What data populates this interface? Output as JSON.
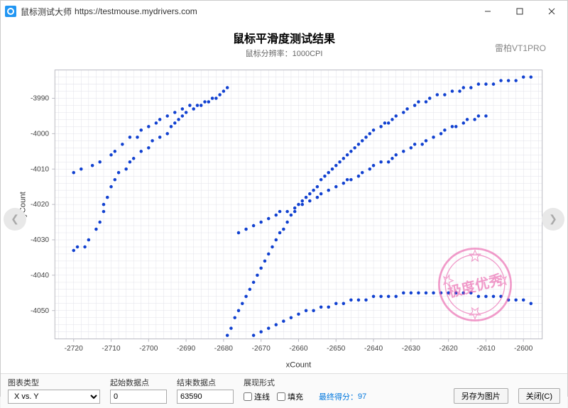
{
  "window": {
    "app_name": "鼠标测试大师",
    "url": "https://testmouse.mydrivers.com"
  },
  "chart": {
    "type": "scatter",
    "title": "鼠标平滑度测试结果",
    "subtitle": "鼠标分辨率：1000CPI",
    "device": "雷柏VT1PRO",
    "xlabel": "xCount",
    "ylabel": "yCount",
    "xlim": [
      -2725,
      -2595
    ],
    "ylim": [
      -4058,
      -3982
    ],
    "xticks": [
      -2720,
      -2710,
      -2700,
      -2690,
      -2680,
      -2670,
      -2660,
      -2650,
      -2640,
      -2630,
      -2620,
      -2610,
      -2600
    ],
    "yticks": [
      -4050,
      -4040,
      -4030,
      -4020,
      -4010,
      -4000,
      -3990
    ],
    "marker_color": "#1040d0",
    "marker_size": 2.2,
    "grid_color": "#e2e2ea",
    "border_color": "#bcbcc4",
    "background_color": "#ffffff",
    "series": [
      {
        "points": [
          [
            -2720,
            -4033
          ],
          [
            -2719,
            -4032
          ],
          [
            -2717,
            -4032
          ],
          [
            -2716,
            -4030
          ],
          [
            -2714,
            -4027
          ],
          [
            -2713,
            -4025
          ],
          [
            -2712,
            -4022
          ],
          [
            -2712,
            -4020
          ],
          [
            -2711,
            -4018
          ],
          [
            -2710,
            -4015
          ],
          [
            -2709,
            -4013
          ],
          [
            -2708,
            -4011
          ],
          [
            -2706,
            -4010
          ],
          [
            -2705,
            -4008
          ],
          [
            -2704,
            -4007
          ],
          [
            -2702,
            -4005
          ],
          [
            -2700,
            -4004
          ],
          [
            -2699,
            -4002
          ],
          [
            -2697,
            -4001
          ],
          [
            -2695,
            -4000
          ],
          [
            -2694,
            -3998
          ],
          [
            -2693,
            -3997
          ],
          [
            -2692,
            -3996
          ],
          [
            -2691,
            -3995
          ],
          [
            -2690,
            -3994
          ],
          [
            -2688,
            -3993
          ],
          [
            -2686,
            -3992
          ],
          [
            -2684,
            -3991
          ],
          [
            -2683,
            -3990
          ],
          [
            -2681,
            -3989
          ],
          [
            -2680,
            -3988
          ],
          [
            -2679,
            -3987
          ]
        ]
      },
      {
        "points": [
          [
            -2720,
            -4011
          ],
          [
            -2718,
            -4010
          ],
          [
            -2715,
            -4009
          ],
          [
            -2713,
            -4008
          ],
          [
            -2710,
            -4006
          ],
          [
            -2709,
            -4005
          ],
          [
            -2707,
            -4003
          ],
          [
            -2705,
            -4001
          ],
          [
            -2703,
            -4001
          ],
          [
            -2702,
            -3999
          ],
          [
            -2700,
            -3998
          ],
          [
            -2698,
            -3997
          ],
          [
            -2697,
            -3996
          ],
          [
            -2695,
            -3995
          ],
          [
            -2693,
            -3994
          ],
          [
            -2691,
            -3993
          ],
          [
            -2689,
            -3992
          ],
          [
            -2687,
            -3992
          ],
          [
            -2685,
            -3991
          ],
          [
            -2682,
            -3990
          ]
        ]
      },
      {
        "points": [
          [
            -2679,
            -4057
          ],
          [
            -2678,
            -4055
          ],
          [
            -2677,
            -4052
          ],
          [
            -2676,
            -4050
          ],
          [
            -2675,
            -4048
          ],
          [
            -2674,
            -4046
          ],
          [
            -2673,
            -4044
          ],
          [
            -2672,
            -4042
          ],
          [
            -2671,
            -4040
          ],
          [
            -2670,
            -4038
          ],
          [
            -2669,
            -4036
          ],
          [
            -2668,
            -4034
          ],
          [
            -2667,
            -4032
          ],
          [
            -2666,
            -4030
          ],
          [
            -2665,
            -4028
          ],
          [
            -2664,
            -4027
          ],
          [
            -2663,
            -4025
          ],
          [
            -2662,
            -4023
          ],
          [
            -2661,
            -4022
          ],
          [
            -2660,
            -4020
          ],
          [
            -2659,
            -4019
          ],
          [
            -2658,
            -4018
          ],
          [
            -2657,
            -4017
          ],
          [
            -2656,
            -4016
          ],
          [
            -2655,
            -4015
          ],
          [
            -2654,
            -4013
          ],
          [
            -2653,
            -4012
          ],
          [
            -2652,
            -4011
          ],
          [
            -2651,
            -4010
          ],
          [
            -2650,
            -4009
          ],
          [
            -2649,
            -4008
          ],
          [
            -2648,
            -4007
          ],
          [
            -2647,
            -4006
          ],
          [
            -2646,
            -4005
          ],
          [
            -2645,
            -4004
          ],
          [
            -2644,
            -4003
          ],
          [
            -2643,
            -4002
          ],
          [
            -2642,
            -4001
          ],
          [
            -2641,
            -4000
          ],
          [
            -2640,
            -3999
          ],
          [
            -2638,
            -3998
          ],
          [
            -2637,
            -3997
          ],
          [
            -2636,
            -3997
          ],
          [
            -2635,
            -3996
          ],
          [
            -2634,
            -3995
          ],
          [
            -2632,
            -3994
          ],
          [
            -2631,
            -3993
          ],
          [
            -2629,
            -3992
          ],
          [
            -2628,
            -3991
          ],
          [
            -2626,
            -3991
          ],
          [
            -2625,
            -3990
          ],
          [
            -2623,
            -3989
          ],
          [
            -2621,
            -3989
          ],
          [
            -2619,
            -3988
          ],
          [
            -2617,
            -3988
          ],
          [
            -2616,
            -3987
          ],
          [
            -2614,
            -3987
          ],
          [
            -2612,
            -3986
          ],
          [
            -2610,
            -3986
          ],
          [
            -2608,
            -3986
          ],
          [
            -2606,
            -3985
          ],
          [
            -2604,
            -3985
          ],
          [
            -2602,
            -3985
          ],
          [
            -2600,
            -3984
          ],
          [
            -2598,
            -3984
          ]
        ]
      },
      {
        "points": [
          [
            -2676,
            -4028
          ],
          [
            -2674,
            -4027
          ],
          [
            -2672,
            -4026
          ],
          [
            -2670,
            -4025
          ],
          [
            -2668,
            -4024
          ],
          [
            -2666,
            -4023
          ],
          [
            -2665,
            -4022
          ],
          [
            -2663,
            -4022
          ],
          [
            -2661,
            -4021
          ],
          [
            -2659,
            -4020
          ],
          [
            -2657,
            -4019
          ],
          [
            -2655,
            -4018
          ],
          [
            -2654,
            -4017
          ],
          [
            -2652,
            -4016
          ],
          [
            -2650,
            -4015
          ],
          [
            -2648,
            -4014
          ],
          [
            -2647,
            -4013
          ],
          [
            -2646,
            -4013
          ],
          [
            -2644,
            -4012
          ],
          [
            -2643,
            -4011
          ],
          [
            -2641,
            -4010
          ],
          [
            -2640,
            -4009
          ],
          [
            -2638,
            -4008
          ],
          [
            -2636,
            -4008
          ],
          [
            -2635,
            -4007
          ],
          [
            -2634,
            -4006
          ],
          [
            -2632,
            -4005
          ],
          [
            -2630,
            -4004
          ],
          [
            -2629,
            -4003
          ],
          [
            -2627,
            -4003
          ],
          [
            -2626,
            -4002
          ],
          [
            -2624,
            -4001
          ],
          [
            -2622,
            -4000
          ],
          [
            -2621,
            -3999
          ],
          [
            -2619,
            -3998
          ],
          [
            -2618,
            -3998
          ],
          [
            -2616,
            -3997
          ],
          [
            -2615,
            -3996
          ],
          [
            -2613,
            -3996
          ],
          [
            -2612,
            -3995
          ],
          [
            -2610,
            -3995
          ]
        ]
      },
      {
        "points": [
          [
            -2672,
            -4057
          ],
          [
            -2670,
            -4056
          ],
          [
            -2668,
            -4055
          ],
          [
            -2666,
            -4054
          ],
          [
            -2664,
            -4053
          ],
          [
            -2662,
            -4052
          ],
          [
            -2660,
            -4051
          ],
          [
            -2658,
            -4050
          ],
          [
            -2656,
            -4050
          ],
          [
            -2654,
            -4049
          ],
          [
            -2652,
            -4049
          ],
          [
            -2650,
            -4048
          ],
          [
            -2648,
            -4048
          ],
          [
            -2646,
            -4047
          ],
          [
            -2644,
            -4047
          ],
          [
            -2642,
            -4047
          ],
          [
            -2640,
            -4046
          ],
          [
            -2638,
            -4046
          ],
          [
            -2636,
            -4046
          ],
          [
            -2634,
            -4046
          ],
          [
            -2632,
            -4045
          ],
          [
            -2630,
            -4045
          ],
          [
            -2628,
            -4045
          ],
          [
            -2626,
            -4045
          ],
          [
            -2624,
            -4045
          ],
          [
            -2622,
            -4045
          ],
          [
            -2620,
            -4045
          ],
          [
            -2618,
            -4045
          ],
          [
            -2616,
            -4045
          ],
          [
            -2614,
            -4045
          ],
          [
            -2612,
            -4046
          ],
          [
            -2610,
            -4046
          ],
          [
            -2608,
            -4046
          ],
          [
            -2606,
            -4046
          ],
          [
            -2604,
            -4047
          ],
          [
            -2602,
            -4047
          ],
          [
            -2600,
            -4047
          ],
          [
            -2598,
            -4048
          ]
        ]
      }
    ]
  },
  "stamp": {
    "text": "极度优秀",
    "color": "#e85aa8"
  },
  "controls": {
    "chart_type_label": "图表类型",
    "chart_type_value": "X vs. Y",
    "start_label": "起始数据点",
    "start_value": "0",
    "end_label": "结束数据点",
    "end_value": "63590",
    "display_label": "展现形式",
    "line_label": "连线",
    "fill_label": "填充",
    "score_label": "最终得分：",
    "score_value": "97",
    "save_image": "另存为图片",
    "close": "关闭(C)"
  }
}
